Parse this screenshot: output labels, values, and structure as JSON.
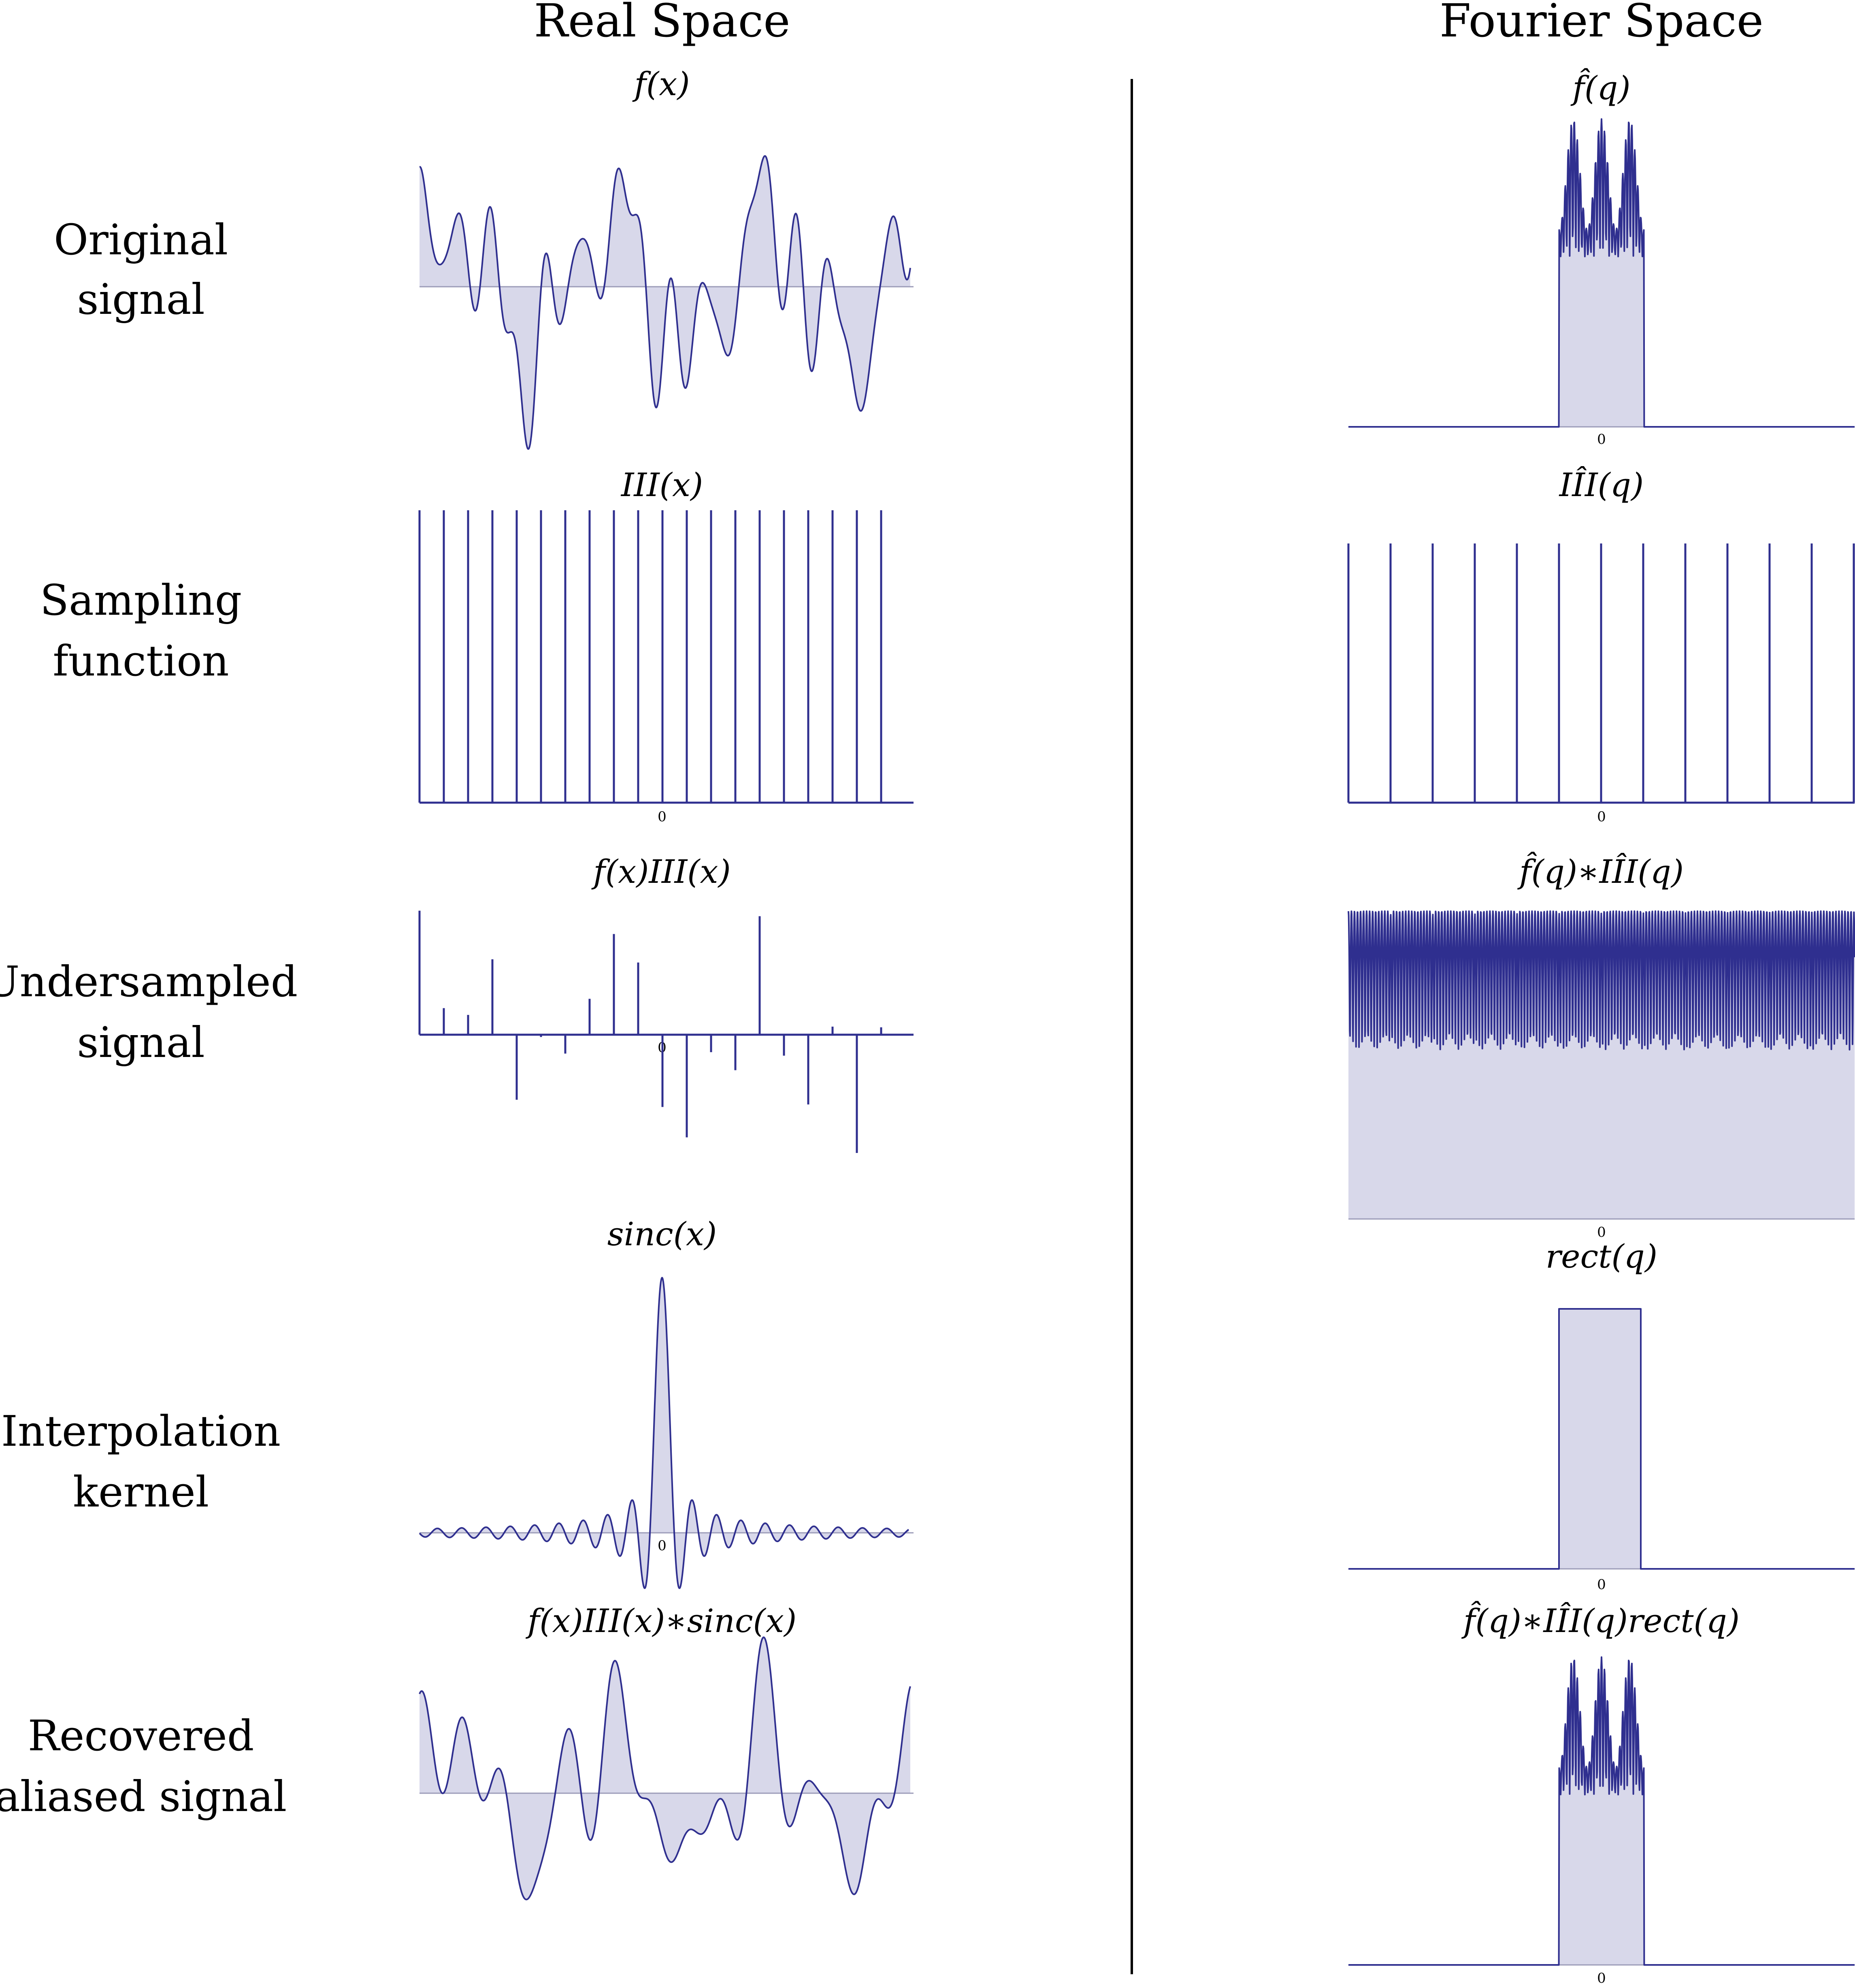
{
  "headers": {
    "real": "Real Space",
    "fourier": "Fourier Space"
  },
  "rows": [
    {
      "label_lines": [
        "Original",
        "signal"
      ],
      "real_title": "f(x)",
      "fourier_title": "f̂(q)",
      "zero": "0"
    },
    {
      "label_lines": [
        "Sampling",
        "function"
      ],
      "real_title": "III(x)",
      "fourier_title": "IÎI(q)",
      "zero": "0"
    },
    {
      "label_lines": [
        "Undersampled",
        "signal"
      ],
      "real_title": "f(x)III(x)",
      "fourier_title": "f̂(q)∗IÎI(q)",
      "zero": "0"
    },
    {
      "label_lines": [
        "Interpolation",
        "kernel"
      ],
      "real_title": "sinc(x)",
      "fourier_title": "rect(q)",
      "zero": "0"
    },
    {
      "label_lines": [
        "Recovered",
        "aliased signal"
      ],
      "real_title": "f(x)III(x)∗sinc(x)",
      "fourier_title": "f̂(q)∗IÎI(q)rect(q)",
      "zero": "0"
    }
  ],
  "colors": {
    "curve": "#2f2f8f",
    "fill": "#d8d8ea",
    "axis": "#9b9bb8",
    "divider": "#000000"
  }
}
